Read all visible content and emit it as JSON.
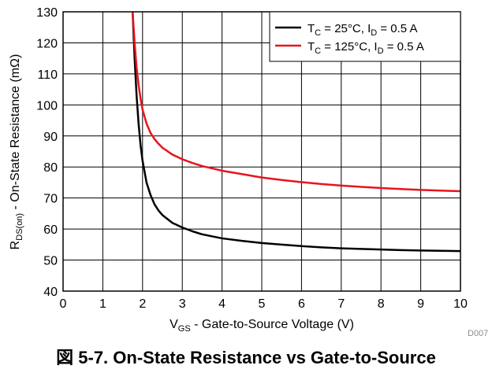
{
  "chart_data": {
    "type": "line",
    "xlabel": {
      "main": "V",
      "sub": "GS",
      "rest": " - Gate-to-Source Voltage (V)"
    },
    "ylabel": {
      "main": "R",
      "sub": "DS(on)",
      "rest": " - On-State Resistance (mΩ)"
    },
    "xlim": [
      0,
      10
    ],
    "ylim": [
      40,
      130
    ],
    "xticks": [
      "0",
      "1",
      "2",
      "3",
      "4",
      "5",
      "6",
      "7",
      "8",
      "9",
      "10"
    ],
    "yticks": [
      "40",
      "50",
      "60",
      "70",
      "80",
      "90",
      "100",
      "110",
      "120",
      "130"
    ],
    "grid": true,
    "legend_position": "top-right",
    "series": [
      {
        "name": {
          "p1": "T",
          "s1": "C",
          "p2": " = 25°C, I",
          "s2": "D",
          "p3": " = 0.5 A"
        },
        "color": "#000000",
        "x": [
          1.75,
          1.8,
          1.85,
          1.9,
          1.95,
          2.0,
          2.1,
          2.2,
          2.3,
          2.4,
          2.5,
          2.75,
          3.0,
          3.25,
          3.5,
          4.0,
          4.5,
          5.0,
          5.5,
          6.0,
          6.5,
          7.0,
          7.5,
          8.0,
          8.5,
          9.0,
          9.5,
          10.0
        ],
        "y": [
          130,
          115,
          103,
          94,
          87,
          82,
          75,
          71,
          68,
          66,
          64.5,
          62,
          60.5,
          59.3,
          58.3,
          57,
          56.2,
          55.5,
          55,
          54.5,
          54.1,
          53.8,
          53.6,
          53.4,
          53.2,
          53.1,
          53,
          52.9
        ]
      },
      {
        "name": {
          "p1": "T",
          "s1": "C",
          "p2": " = 125°C, I",
          "s2": "D",
          "p3": " = 0.5 A"
        },
        "color": "#e8141c",
        "x": [
          1.75,
          1.8,
          1.85,
          1.9,
          1.95,
          2.0,
          2.1,
          2.2,
          2.3,
          2.4,
          2.5,
          2.75,
          3.0,
          3.25,
          3.5,
          4.0,
          4.5,
          5.0,
          5.5,
          6.0,
          6.5,
          7.0,
          7.5,
          8.0,
          8.5,
          9.0,
          9.5,
          10.0
        ],
        "y": [
          130,
          120,
          112,
          106.5,
          102,
          98.5,
          94,
          91,
          89,
          87.5,
          86.2,
          84,
          82.5,
          81.3,
          80.3,
          78.8,
          77.7,
          76.6,
          75.8,
          75.1,
          74.5,
          74,
          73.6,
          73.2,
          72.9,
          72.6,
          72.4,
          72.2
        ]
      }
    ]
  },
  "code": "D007",
  "caption": "図 5-7. On-State Resistance vs Gate-to-Source"
}
